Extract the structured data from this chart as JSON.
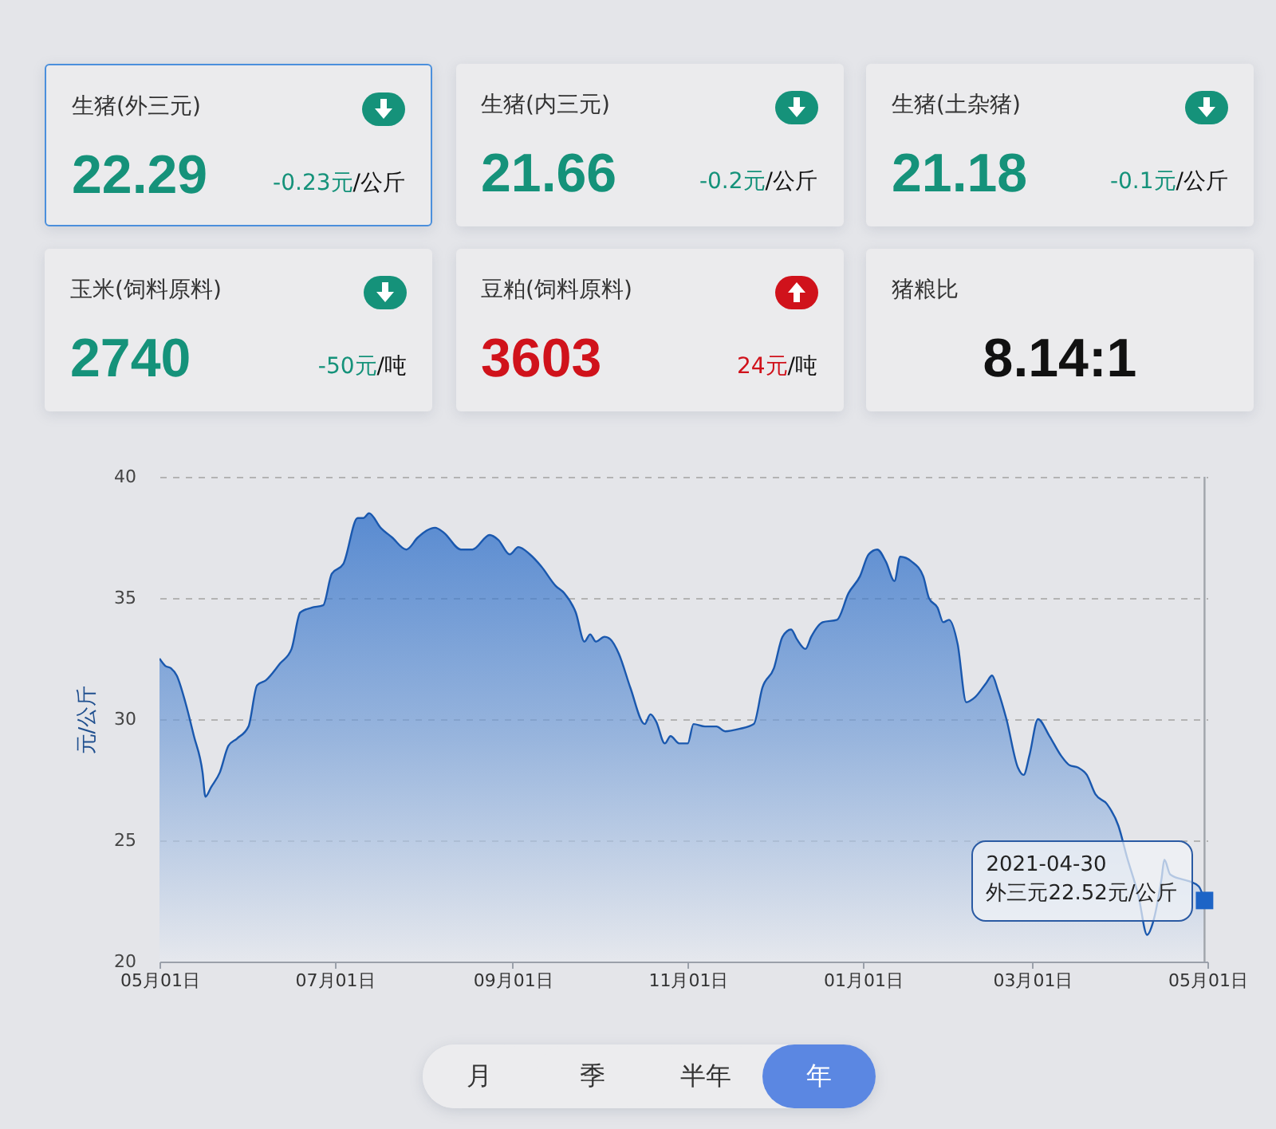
{
  "chart_data": [
    {
      "type": "other",
      "categories": [
        "生猪(外三元)",
        "生猪(内三元)",
        "生猪(土杂猪)",
        "玉米(饲料原料)",
        "豆粕(饲料原料)",
        "猪粮比"
      ],
      "series": [
        {
          "values": [
            22.29,
            21.66,
            21.18,
            2740,
            3603,
            8.14
          ]
        },
        {
          "values": [
            -0.23,
            -0.2,
            -0.1,
            -50,
            24,
            null
          ]
        }
      ],
      "data_labels": true,
      "annotations": [
        "元",
        "/公斤",
        "元",
        "/公斤",
        "元",
        "/公斤",
        "元",
        "/吨",
        "元",
        "/吨",
        ":1"
      ]
    },
    {
      "type": "area",
      "ylabel": "元/公斤",
      "color": "#1d64c6",
      "x": [
        "2020-05-01",
        "2020-05-03",
        "2020-05-05",
        "2020-05-07",
        "2020-05-10",
        "2020-05-13",
        "2020-05-16",
        "2020-05-17",
        "2020-05-19",
        "2020-05-22",
        "2020-05-25",
        "2020-05-28",
        "2020-06-01",
        "2020-06-04",
        "2020-06-07",
        "2020-06-12",
        "2020-06-16",
        "2020-06-19",
        "2020-06-23",
        "2020-06-27",
        "2020-06-30",
        "2020-07-04",
        "2020-07-09",
        "2020-07-11",
        "2020-07-13",
        "2020-07-17",
        "2020-07-21",
        "2020-07-26",
        "2020-07-30",
        "2020-08-05",
        "2020-08-08",
        "2020-08-14",
        "2020-08-18",
        "2020-08-24",
        "2020-08-27",
        "2020-08-31",
        "2020-09-03",
        "2020-09-07",
        "2020-09-11",
        "2020-09-16",
        "2020-09-19",
        "2020-09-23",
        "2020-09-26",
        "2020-09-28",
        "2020-09-30",
        "2020-10-03",
        "2020-10-05",
        "2020-10-08",
        "2020-10-12",
        "2020-10-17",
        "2020-10-19",
        "2020-10-21",
        "2020-10-24",
        "2020-10-26",
        "2020-10-29",
        "2020-11-01",
        "2020-11-03",
        "2020-11-07",
        "2020-11-11",
        "2020-11-14",
        "2020-11-19",
        "2020-11-24",
        "2020-11-27",
        "2020-12-01",
        "2020-12-04",
        "2020-12-07",
        "2020-12-09",
        "2020-12-12",
        "2020-12-14",
        "2020-12-18",
        "2020-12-23",
        "2020-12-27",
        "2020-12-31",
        "2021-01-03",
        "2021-01-06",
        "2021-01-09",
        "2021-01-12",
        "2021-01-14",
        "2021-01-18",
        "2021-01-22",
        "2021-01-24",
        "2021-01-27",
        "2021-01-29",
        "2021-01-31",
        "2021-02-03",
        "2021-02-06",
        "2021-02-09",
        "2021-02-13",
        "2021-02-15",
        "2021-02-17",
        "2021-02-20",
        "2021-02-24",
        "2021-02-26",
        "2021-02-28",
        "2021-03-03",
        "2021-03-07",
        "2021-03-11",
        "2021-03-14",
        "2021-03-17",
        "2021-03-20",
        "2021-03-23",
        "2021-03-27",
        "2021-03-31",
        "2021-04-03",
        "2021-04-07",
        "2021-04-10",
        "2021-04-12",
        "2021-04-15",
        "2021-04-16",
        "2021-04-18",
        "2021-04-22",
        "2021-04-25",
        "2021-04-28",
        "2021-04-30"
      ],
      "values": [
        32.5,
        32.2,
        32.1,
        31.8,
        30.7,
        29.3,
        27.8,
        26.8,
        27.2,
        27.8,
        28.9,
        29.2,
        29.7,
        31.4,
        31.6,
        32.3,
        32.9,
        34.4,
        34.6,
        34.7,
        36.0,
        36.4,
        38.3,
        38.3,
        38.5,
        37.9,
        37.5,
        37.0,
        37.5,
        37.9,
        37.7,
        37.0,
        37.0,
        37.6,
        37.4,
        36.8,
        37.1,
        36.8,
        36.3,
        35.5,
        35.2,
        34.4,
        33.2,
        33.5,
        33.2,
        33.4,
        33.3,
        32.7,
        31.3,
        29.8,
        30.2,
        29.9,
        29.0,
        29.3,
        29.0,
        29.0,
        29.8,
        29.7,
        29.7,
        29.5,
        29.6,
        29.8,
        31.3,
        32.1,
        33.4,
        33.7,
        33.3,
        32.9,
        33.4,
        34.0,
        34.1,
        35.2,
        35.9,
        36.8,
        37.0,
        36.5,
        35.7,
        36.7,
        36.5,
        35.9,
        35.0,
        34.6,
        34.0,
        34.1,
        33.1,
        30.7,
        30.9,
        31.5,
        31.8,
        31.2,
        30.0,
        28.0,
        27.7,
        28.5,
        30.0,
        29.3,
        28.5,
        28.1,
        28.0,
        27.7,
        26.9,
        26.5,
        25.6,
        24.3,
        22.7,
        21.1,
        21.6,
        23.4,
        24.2,
        23.6,
        23.4,
        23.3,
        23.1,
        22.52
      ],
      "xlim": [
        "2020-05-01",
        "2021-05-01"
      ],
      "xticks": [
        {
          "value": "2020-05-01",
          "label": "05月01日"
        },
        {
          "value": "2020-07-01",
          "label": "07月01日"
        },
        {
          "value": "2020-09-01",
          "label": "09月01日"
        },
        {
          "value": "2020-11-01",
          "label": "11月01日"
        },
        {
          "value": "2021-01-01",
          "label": "01月01日"
        },
        {
          "value": "2021-03-01",
          "label": "03月01日"
        },
        {
          "value": "2021-05-01",
          "label": "05月01日"
        }
      ],
      "ylim": [
        20,
        40
      ],
      "yticks": [
        20,
        25,
        30,
        35,
        40
      ],
      "grid": "y",
      "ref_lines": [
        {
          "axis": "x",
          "value": "2021-04-30",
          "color": "#a0a4ab"
        }
      ],
      "annotations": [
        {
          "text": "2021-04-30\n外三元22.52元/公斤",
          "x": "2021-04-30",
          "y": 22.52
        }
      ]
    },
    {
      "type": "other",
      "categories": [
        "月",
        "季",
        "半年",
        "年"
      ],
      "colors": [
        "#ececee",
        "#ececee",
        "#ececee",
        "#5b87e2"
      ]
    }
  ]
}
